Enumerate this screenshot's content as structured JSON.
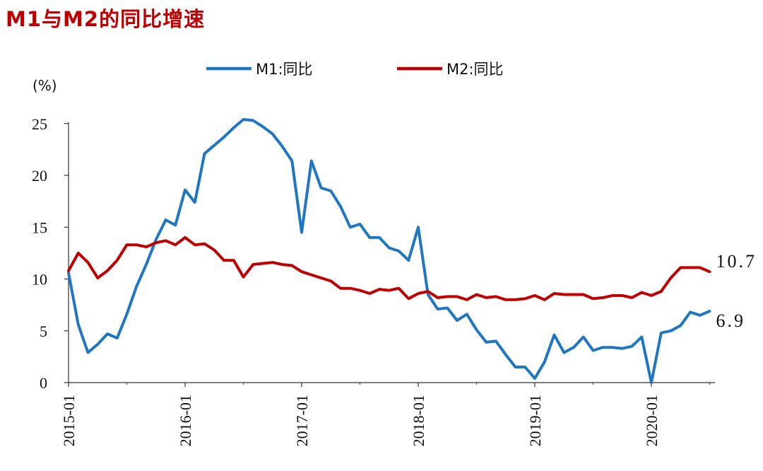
{
  "title": "M1与M2的同比增速",
  "chart_data": {
    "type": "line",
    "title": "M1与M2的同比增速",
    "ylabel": "(%)",
    "xlabel": "",
    "ylim": [
      0,
      25
    ],
    "yticks": [
      "0",
      "5",
      "10",
      "15",
      "20",
      "25"
    ],
    "xticks": [
      "2015-01",
      "2016-01",
      "2017-01",
      "2018-01",
      "2019-01",
      "2020-01"
    ],
    "x_start": "2015-01",
    "legend_position": "top",
    "grid": false,
    "series": [
      {
        "name": "M1:同比",
        "color": "#1f77c4",
        "end_label": "6.9",
        "values": [
          10.6,
          5.6,
          2.9,
          3.7,
          4.7,
          4.3,
          6.6,
          9.3,
          11.4,
          13.8,
          15.7,
          15.2,
          18.6,
          17.4,
          22.1,
          22.9,
          23.7,
          24.6,
          25.4,
          25.3,
          24.7,
          24.0,
          22.8,
          21.4,
          14.5,
          21.4,
          18.8,
          18.5,
          17.0,
          15.0,
          15.3,
          14.0,
          14.0,
          13.0,
          12.7,
          11.8,
          15.0,
          8.5,
          7.1,
          7.2,
          6.0,
          6.6,
          5.1,
          3.9,
          4.0,
          2.7,
          1.5,
          1.5,
          0.4,
          2.0,
          4.6,
          2.9,
          3.4,
          4.4,
          3.1,
          3.4,
          3.4,
          3.3,
          3.5,
          4.4,
          0.0,
          4.8,
          5.0,
          5.5,
          6.8,
          6.5,
          6.9
        ]
      },
      {
        "name": "M2:同比",
        "color": "#c00000",
        "end_label": "10.7",
        "values": [
          10.8,
          12.5,
          11.6,
          10.1,
          10.8,
          11.8,
          13.3,
          13.3,
          13.1,
          13.5,
          13.7,
          13.3,
          14.0,
          13.3,
          13.4,
          12.8,
          11.8,
          11.8,
          10.2,
          11.4,
          11.5,
          11.6,
          11.4,
          11.3,
          10.7,
          10.4,
          10.1,
          9.8,
          9.1,
          9.1,
          8.9,
          8.6,
          9.0,
          8.9,
          9.1,
          8.1,
          8.6,
          8.8,
          8.2,
          8.3,
          8.3,
          8.0,
          8.5,
          8.2,
          8.3,
          8.0,
          8.0,
          8.1,
          8.4,
          8.0,
          8.6,
          8.5,
          8.5,
          8.5,
          8.1,
          8.2,
          8.4,
          8.4,
          8.2,
          8.7,
          8.4,
          8.8,
          10.1,
          11.1,
          11.1,
          11.1,
          10.7
        ]
      }
    ]
  }
}
